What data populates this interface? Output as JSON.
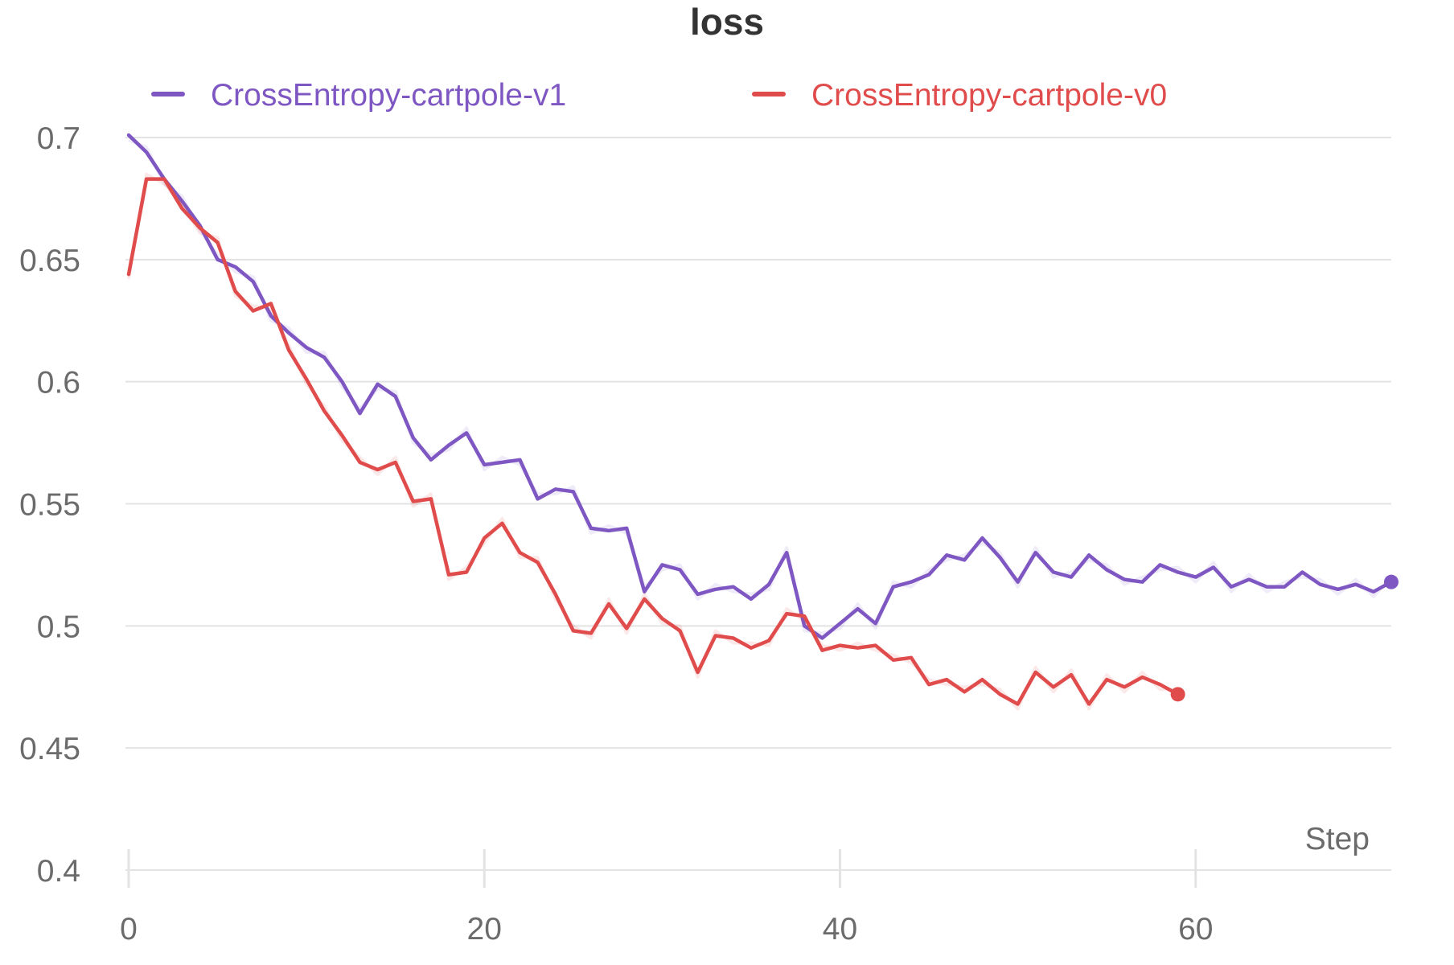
{
  "chart_data": {
    "type": "line",
    "title": "loss",
    "xlabel": "Step",
    "ylabel": "",
    "xlim": [
      0,
      71
    ],
    "ylim": [
      0.4,
      0.7
    ],
    "x_ticks": [
      0,
      20,
      40,
      60
    ],
    "y_ticks": [
      0.4,
      0.45,
      0.5,
      0.55,
      0.6,
      0.65,
      0.7
    ],
    "x_tick_labels": [
      "0",
      "20",
      "40",
      "60"
    ],
    "y_tick_labels": [
      "0.4",
      "0.45",
      "0.5",
      "0.55",
      "0.6",
      "0.65",
      "0.7"
    ],
    "grid": true,
    "legend_position": "top",
    "series": [
      {
        "name": "CrossEntropy-cartpole-v1",
        "color": "#7e57c2",
        "x": [
          0,
          1,
          2,
          3,
          4,
          5,
          6,
          7,
          8,
          9,
          10,
          11,
          12,
          13,
          14,
          15,
          16,
          17,
          18,
          19,
          20,
          21,
          22,
          23,
          24,
          25,
          26,
          27,
          28,
          29,
          30,
          31,
          32,
          33,
          34,
          35,
          36,
          37,
          38,
          39,
          40,
          41,
          42,
          43,
          44,
          45,
          46,
          47,
          48,
          49,
          50,
          51,
          52,
          53,
          54,
          55,
          56,
          57,
          58,
          59,
          60,
          61,
          62,
          63,
          64,
          65,
          66,
          67,
          68,
          69,
          70,
          71
        ],
        "values": [
          0.701,
          0.694,
          0.683,
          0.674,
          0.664,
          0.65,
          0.647,
          0.641,
          0.627,
          0.62,
          0.614,
          0.61,
          0.6,
          0.587,
          0.599,
          0.594,
          0.577,
          0.568,
          0.574,
          0.579,
          0.566,
          0.567,
          0.568,
          0.552,
          0.556,
          0.555,
          0.54,
          0.539,
          0.54,
          0.514,
          0.525,
          0.523,
          0.513,
          0.515,
          0.516,
          0.511,
          0.517,
          0.53,
          0.5,
          0.495,
          0.501,
          0.507,
          0.501,
          0.516,
          0.518,
          0.521,
          0.529,
          0.527,
          0.536,
          0.528,
          0.518,
          0.53,
          0.522,
          0.52,
          0.529,
          0.523,
          0.519,
          0.518,
          0.525,
          0.522,
          0.52,
          0.524,
          0.516,
          0.519,
          0.516,
          0.516,
          0.522,
          0.517,
          0.515,
          0.517,
          0.514,
          0.518
        ]
      },
      {
        "name": "CrossEntropy-cartpole-v0",
        "color": "#e04c4c",
        "x": [
          0,
          1,
          2,
          3,
          4,
          5,
          6,
          7,
          8,
          9,
          10,
          11,
          12,
          13,
          14,
          15,
          16,
          17,
          18,
          19,
          20,
          21,
          22,
          23,
          24,
          25,
          26,
          27,
          28,
          29,
          30,
          31,
          32,
          33,
          34,
          35,
          36,
          37,
          38,
          39,
          40,
          41,
          42,
          43,
          44,
          45,
          46,
          47,
          48,
          49,
          50,
          51,
          52,
          53,
          54,
          55,
          56,
          57,
          58,
          59
        ],
        "values": [
          0.644,
          0.683,
          0.683,
          0.671,
          0.663,
          0.657,
          0.637,
          0.629,
          0.632,
          0.613,
          0.601,
          0.588,
          0.578,
          0.567,
          0.564,
          0.567,
          0.551,
          0.552,
          0.521,
          0.522,
          0.536,
          0.542,
          0.53,
          0.526,
          0.513,
          0.498,
          0.497,
          0.509,
          0.499,
          0.511,
          0.503,
          0.498,
          0.481,
          0.496,
          0.495,
          0.491,
          0.494,
          0.505,
          0.504,
          0.49,
          0.492,
          0.491,
          0.492,
          0.486,
          0.487,
          0.476,
          0.478,
          0.473,
          0.478,
          0.472,
          0.468,
          0.481,
          0.475,
          0.48,
          0.468,
          0.478,
          0.475,
          0.479,
          0.476,
          0.472
        ]
      }
    ]
  }
}
